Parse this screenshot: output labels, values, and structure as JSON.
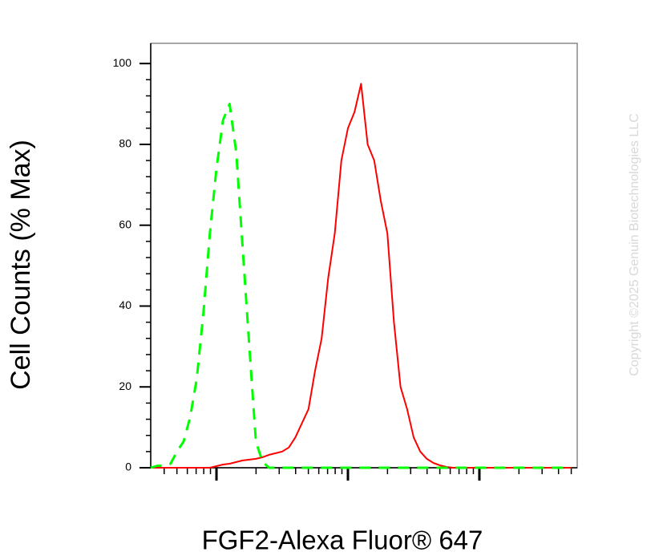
{
  "chart_data": {
    "type": "line",
    "x_label": "FGF2-Alexa Fluor® 647",
    "y_label": "Cell Counts (% Max)",
    "watermark": "Copyright ©2025 Genuin Biotechnologies LLC",
    "x_scale": "log",
    "xlim": [
      316,
      555000
    ],
    "xticks": [
      1000,
      10000,
      100000
    ],
    "ylim": [
      0,
      105
    ],
    "yticks": [
      0,
      20,
      40,
      60,
      80,
      100
    ],
    "x": [
      316,
      355,
      398,
      447,
      501,
      562,
      631,
      708,
      794,
      891,
      1000,
      1122,
      1259,
      1413,
      1585,
      1778,
      1995,
      2239,
      2512,
      2818,
      3162,
      3548,
      3981,
      4467,
      5012,
      5623,
      6310,
      7079,
      7943,
      8913,
      10000,
      11220,
      12589,
      14125,
      15849,
      17783,
      19953,
      22387,
      25119,
      28184,
      31623,
      35481,
      39811,
      44668,
      50119,
      56234,
      63096,
      70795,
      79433,
      89125,
      100000,
      112202,
      125893,
      141254,
      158489,
      177828,
      199526,
      223872,
      251189,
      281838,
      316228,
      354813,
      398107,
      446684,
      501187
    ],
    "series": [
      {
        "color": "#ff0000",
        "line_style": "solid",
        "values": [
          0,
          0,
          0,
          0,
          0,
          0,
          0,
          0,
          0,
          0,
          0.4,
          0.8,
          1,
          1.4,
          1.8,
          2,
          2.2,
          2.6,
          3.2,
          3.6,
          4,
          5,
          7.5,
          11,
          14.5,
          24,
          32,
          47,
          58,
          76,
          84,
          88,
          95,
          80,
          76,
          66,
          58,
          36,
          20,
          14.5,
          7.5,
          4,
          2.2,
          1.2,
          0.6,
          0.2,
          0,
          0,
          0,
          0,
          0,
          0,
          0,
          0,
          0,
          0,
          0,
          0,
          0,
          0,
          0,
          0,
          0,
          0,
          0
        ]
      },
      {
        "color": "#00ff00",
        "line_style": "dashed",
        "values": [
          0,
          0.5,
          0.5,
          1,
          4,
          6.5,
          12.5,
          22,
          38,
          58,
          74,
          86,
          90,
          78,
          54,
          30,
          6.5,
          1.5,
          0,
          0,
          0,
          0,
          0,
          0,
          0,
          0,
          0,
          0,
          0,
          0,
          0,
          0,
          0,
          0,
          0,
          0,
          0,
          0,
          0,
          0,
          0,
          0,
          0,
          0,
          0,
          0,
          0,
          0,
          0,
          0,
          0,
          0,
          0,
          0,
          0,
          0,
          0,
          0,
          0,
          0,
          0,
          0,
          0,
          0,
          0
        ]
      }
    ]
  }
}
